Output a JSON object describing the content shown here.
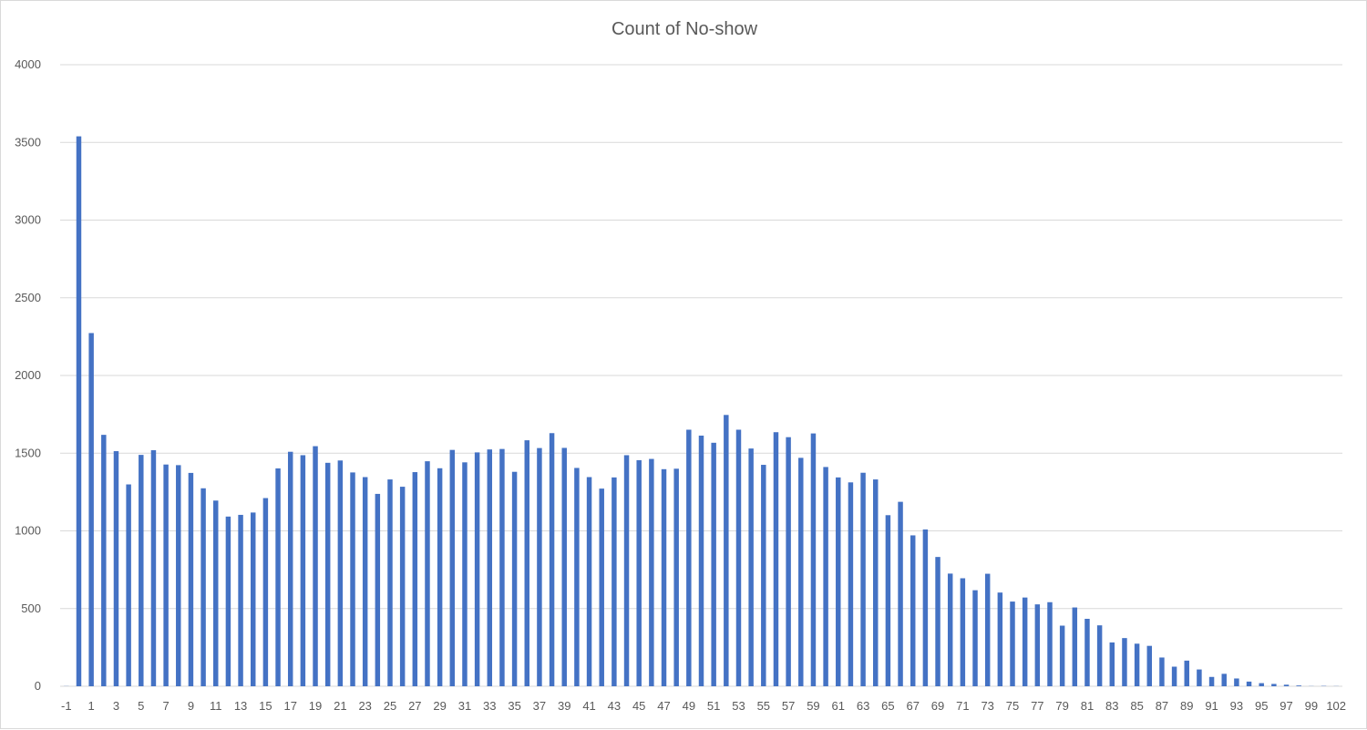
{
  "chart_data": {
    "type": "bar",
    "title": "Count of No-show",
    "xlabel": "",
    "ylabel": "",
    "ylim": [
      0,
      4000
    ],
    "yticks": [
      0,
      500,
      1000,
      1500,
      2000,
      2500,
      3000,
      3500,
      4000
    ],
    "grid": true,
    "legend": "none",
    "bar_color": "#4472c4",
    "gridline_color": "#d9d9d9",
    "categories": [
      "-1",
      "0",
      "1",
      "2",
      "3",
      "4",
      "5",
      "6",
      "7",
      "8",
      "9",
      "10",
      "11",
      "12",
      "13",
      "14",
      "15",
      "16",
      "17",
      "18",
      "19",
      "20",
      "21",
      "22",
      "23",
      "24",
      "25",
      "26",
      "27",
      "28",
      "29",
      "30",
      "31",
      "32",
      "33",
      "34",
      "35",
      "36",
      "37",
      "38",
      "39",
      "40",
      "41",
      "42",
      "43",
      "44",
      "45",
      "46",
      "47",
      "48",
      "49",
      "50",
      "51",
      "52",
      "53",
      "54",
      "55",
      "56",
      "57",
      "58",
      "59",
      "60",
      "61",
      "62",
      "63",
      "64",
      "65",
      "66",
      "67",
      "68",
      "69",
      "70",
      "71",
      "72",
      "73",
      "74",
      "75",
      "76",
      "77",
      "78",
      "79",
      "80",
      "81",
      "82",
      "83",
      "84",
      "85",
      "86",
      "87",
      "88",
      "89",
      "90",
      "91",
      "92",
      "93",
      "94",
      "95",
      "96",
      "97",
      "98",
      "99",
      "100",
      "102"
    ],
    "visible_x_labels": [
      "-1",
      "1",
      "3",
      "5",
      "7",
      "9",
      "11",
      "13",
      "15",
      "17",
      "19",
      "21",
      "23",
      "25",
      "27",
      "29",
      "31",
      "33",
      "35",
      "37",
      "39",
      "41",
      "43",
      "45",
      "47",
      "49",
      "51",
      "53",
      "55",
      "57",
      "59",
      "61",
      "63",
      "65",
      "67",
      "69",
      "71",
      "73",
      "75",
      "77",
      "79",
      "81",
      "83",
      "85",
      "87",
      "89",
      "91",
      "93",
      "95",
      "97",
      "99",
      "102"
    ],
    "values": [
      1,
      3539,
      2273,
      1618,
      1513,
      1299,
      1489,
      1519,
      1427,
      1423,
      1373,
      1274,
      1195,
      1092,
      1103,
      1118,
      1211,
      1402,
      1509,
      1487,
      1545,
      1438,
      1453,
      1376,
      1346,
      1238,
      1331,
      1284,
      1378,
      1448,
      1403,
      1521,
      1441,
      1505,
      1524,
      1527,
      1380,
      1583,
      1533,
      1629,
      1534,
      1405,
      1346,
      1272,
      1344,
      1487,
      1455,
      1463,
      1397,
      1400,
      1651,
      1613,
      1567,
      1746,
      1651,
      1530,
      1425,
      1635,
      1603,
      1470,
      1627,
      1411,
      1344,
      1312,
      1374,
      1331,
      1101,
      1187,
      971,
      1009,
      832,
      725,
      695,
      618,
      724,
      603,
      545,
      571,
      527,
      541,
      390,
      507,
      434,
      392,
      282,
      310,
      274,
      260,
      185,
      126,
      165,
      108,
      60,
      80,
      50,
      30,
      20,
      15,
      10,
      5,
      1,
      2,
      1
    ]
  }
}
